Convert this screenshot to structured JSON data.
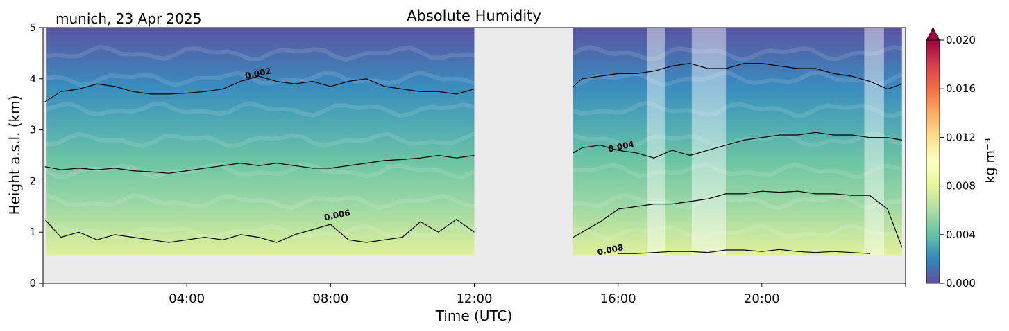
{
  "header": {
    "site_label": "munich, 23 Apr 2025",
    "title": "Absolute Humidity"
  },
  "chart_data": {
    "type": "heatmap",
    "title": "Absolute Humidity",
    "xlabel": "Time (UTC)",
    "ylabel": "Height a.s.l. (km)",
    "xlim_hours": [
      0,
      24
    ],
    "ylim_km": [
      0,
      5
    ],
    "x_ticks": [
      {
        "hour": 4,
        "label": "04:00"
      },
      {
        "hour": 8,
        "label": "08:00"
      },
      {
        "hour": 12,
        "label": "12:00"
      },
      {
        "hour": 16,
        "label": "16:00"
      },
      {
        "hour": 20,
        "label": "20:00"
      }
    ],
    "y_ticks": [
      {
        "km": 0,
        "label": "0"
      },
      {
        "km": 1,
        "label": "1"
      },
      {
        "km": 2,
        "label": "2"
      },
      {
        "km": 3,
        "label": "3"
      },
      {
        "km": 4,
        "label": "4"
      },
      {
        "km": 5,
        "label": "5"
      }
    ],
    "colorbar": {
      "label": "kg m⁻³",
      "range": [
        0.0,
        0.02
      ],
      "extend": "max",
      "ticks": [
        "0.000",
        "0.004",
        "0.008",
        "0.012",
        "0.016",
        "0.020"
      ],
      "colormap": "Spectral_r"
    },
    "data_segments_hours": [
      [
        0.1,
        12.0
      ],
      [
        14.75,
        23.9
      ]
    ],
    "lowest_range_gate_km": 0.55,
    "flagged_intervals_hours": [
      [
        16.8,
        17.3
      ],
      [
        18.05,
        19.0
      ],
      [
        22.85,
        23.4
      ]
    ],
    "contours": [
      {
        "level": "0.002",
        "label": "0.002",
        "segments": [
          {
            "x": [
              0.05,
              0.5,
              1.0,
              1.5,
              2.0,
              2.5,
              3.0,
              3.5,
              4.0,
              4.5,
              5.0,
              5.5,
              6.0,
              6.5,
              7.0,
              7.5,
              8.0,
              8.5,
              9.0,
              9.5,
              10.0,
              10.5,
              11.0,
              11.5,
              12.0
            ],
            "y": [
              3.55,
              3.75,
              3.8,
              3.9,
              3.85,
              3.75,
              3.7,
              3.7,
              3.72,
              3.75,
              3.8,
              3.95,
              4.05,
              3.95,
              3.9,
              3.95,
              3.85,
              3.95,
              4.0,
              3.85,
              3.8,
              3.75,
              3.75,
              3.7,
              3.8
            ]
          },
          {
            "x": [
              14.75,
              15.0,
              15.5,
              16.0,
              16.5,
              17.0,
              17.5,
              18.0,
              18.5,
              19.0,
              19.5,
              20.0,
              20.5,
              21.0,
              21.5,
              22.0,
              22.5,
              23.0,
              23.5,
              23.9
            ],
            "y": [
              3.85,
              4.0,
              4.05,
              4.1,
              4.1,
              4.15,
              4.25,
              4.3,
              4.2,
              4.2,
              4.3,
              4.3,
              4.25,
              4.2,
              4.2,
              4.1,
              4.05,
              3.95,
              3.8,
              3.9
            ]
          }
        ],
        "label_at": {
          "hour": 6.0,
          "km": 4.05
        }
      },
      {
        "level": "0.004",
        "label": "0.004",
        "segments": [
          {
            "x": [
              0.05,
              0.5,
              1.0,
              1.5,
              2.0,
              2.5,
              3.0,
              3.5,
              4.0,
              4.5,
              5.0,
              5.5,
              6.0,
              6.5,
              7.0,
              7.5,
              8.0,
              8.5,
              9.0,
              9.5,
              10.0,
              10.5,
              11.0,
              11.5,
              12.0
            ],
            "y": [
              2.28,
              2.22,
              2.25,
              2.22,
              2.25,
              2.2,
              2.18,
              2.15,
              2.2,
              2.25,
              2.3,
              2.35,
              2.3,
              2.35,
              2.3,
              2.25,
              2.25,
              2.3,
              2.35,
              2.4,
              2.42,
              2.45,
              2.5,
              2.45,
              2.5
            ]
          },
          {
            "x": [
              14.75,
              15.0,
              15.5,
              16.0,
              16.5,
              17.0,
              17.5,
              18.0,
              18.5,
              19.0,
              19.5,
              20.0,
              20.5,
              21.0,
              21.5,
              22.0,
              22.5,
              23.0,
              23.5,
              23.9
            ],
            "y": [
              2.55,
              2.65,
              2.7,
              2.6,
              2.55,
              2.45,
              2.6,
              2.5,
              2.6,
              2.7,
              2.8,
              2.85,
              2.9,
              2.9,
              2.95,
              2.9,
              2.9,
              2.85,
              2.85,
              2.8
            ]
          }
        ],
        "label_at": {
          "hour": 16.1,
          "km": 2.62
        }
      },
      {
        "level": "0.006",
        "label": "0.006",
        "segments": [
          {
            "x": [
              0.05,
              0.5,
              1.0,
              1.5,
              2.0,
              2.5,
              3.0,
              3.5,
              4.0,
              4.5,
              5.0,
              5.5,
              6.0,
              6.5,
              7.0,
              7.5,
              8.0,
              8.5,
              9.0,
              9.5,
              10.0,
              10.5,
              11.0,
              11.5,
              12.0
            ],
            "y": [
              1.25,
              0.9,
              1.0,
              0.85,
              0.95,
              0.9,
              0.85,
              0.8,
              0.85,
              0.9,
              0.85,
              0.95,
              0.9,
              0.8,
              0.95,
              1.05,
              1.15,
              0.85,
              0.8,
              0.85,
              0.9,
              1.2,
              1.0,
              1.25,
              1.0
            ]
          },
          {
            "x": [
              14.75,
              15.0,
              15.5,
              16.0,
              16.5,
              17.0,
              17.5,
              18.0,
              18.5,
              19.0,
              19.5,
              20.0,
              20.5,
              21.0,
              21.5,
              22.0,
              22.5,
              23.0,
              23.5,
              23.9
            ],
            "y": [
              0.9,
              1.0,
              1.2,
              1.45,
              1.5,
              1.55,
              1.55,
              1.6,
              1.65,
              1.75,
              1.75,
              1.8,
              1.78,
              1.8,
              1.75,
              1.75,
              1.72,
              1.72,
              1.45,
              0.7
            ]
          }
        ],
        "label_at": {
          "hour": 8.2,
          "km": 1.28
        }
      },
      {
        "level": "0.008",
        "label": "0.008",
        "segments": [
          {
            "x": [
              16.0,
              16.5,
              17.0,
              17.5,
              18.0,
              18.5,
              19.0,
              19.5,
              20.0,
              20.5,
              21.0,
              21.5,
              22.0,
              22.5,
              23.0
            ],
            "y": [
              0.58,
              0.58,
              0.6,
              0.62,
              0.62,
              0.6,
              0.65,
              0.65,
              0.62,
              0.66,
              0.62,
              0.6,
              0.62,
              0.6,
              0.58
            ]
          }
        ],
        "label_at": {
          "hour": 15.8,
          "km": 0.6
        }
      }
    ]
  }
}
